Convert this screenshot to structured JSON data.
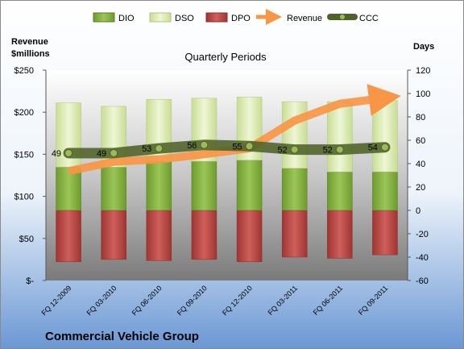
{
  "chart_data": {
    "type": "bar",
    "title": "Quarterly Periods",
    "company": "Commercial Vehicle Group",
    "left_axis_title_line1": "Revenue",
    "left_axis_title_line2": "$millions",
    "right_axis_title": "Days",
    "categories": [
      "FQ 12-2009",
      "FQ 03-2010",
      "FQ 06-2010",
      "FQ 09-2010",
      "FQ 12-2010",
      "FQ 03-2011",
      "FQ 06-2011",
      "FQ 09-2011"
    ],
    "left_axis": {
      "min": 0,
      "max": 250,
      "ticks": [
        "$-",
        "$50",
        "$100",
        "$150",
        "$200",
        "$250"
      ]
    },
    "right_axis": {
      "min": -60,
      "max": 120,
      "ticks": [
        "-60",
        "-40",
        "-20",
        "0",
        "20",
        "40",
        "60",
        "80",
        "100",
        "120"
      ]
    },
    "legend_position": "top",
    "series": [
      {
        "name": "DIO",
        "kind": "stacked-bar",
        "axis": "right",
        "color": "#8db84a",
        "values": [
          37,
          37,
          42,
          42,
          43,
          36,
          33,
          33
        ]
      },
      {
        "name": "DSO",
        "kind": "stacked-bar",
        "axis": "right",
        "color": "#dfeebb",
        "values": [
          55,
          52,
          53,
          54,
          54,
          57,
          60,
          61
        ]
      },
      {
        "name": "DPO",
        "kind": "stacked-bar",
        "axis": "right",
        "color": "#c0504d",
        "values": [
          -44,
          -42,
          -43,
          -42,
          -44,
          -40,
          -41,
          -38
        ]
      },
      {
        "name": "Revenue",
        "kind": "line",
        "axis": "left",
        "color": "#f79646",
        "values": [
          130,
          141,
          144,
          150,
          157,
          190,
          210,
          217
        ]
      },
      {
        "name": "CCC",
        "kind": "line",
        "axis": "right",
        "color": "#4f6228",
        "values": [
          49,
          49,
          53,
          56,
          55,
          52,
          52,
          54
        ],
        "labels": [
          "49",
          "49",
          "53",
          "56",
          "55",
          "52",
          "52",
          "54"
        ]
      }
    ]
  }
}
